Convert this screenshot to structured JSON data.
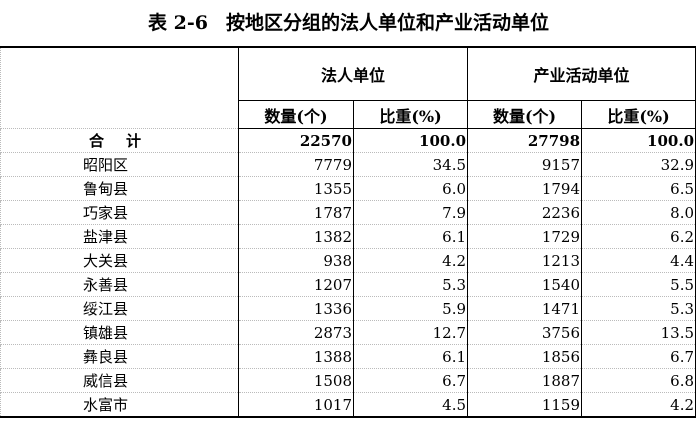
{
  "title": {
    "number": "表 2-6",
    "text": "按地区分组的法人单位和产业活动单位"
  },
  "headers": {
    "group1": "法人单位",
    "group2": "产业活动单位",
    "count": "数量(个)",
    "ratio": "比重(%)"
  },
  "total": {
    "label": "合计",
    "values": [
      "22570",
      "100.0",
      "27798",
      "100.0"
    ]
  },
  "rows": [
    {
      "name": "昭阳区",
      "values": [
        "7779",
        "34.5",
        "9157",
        "32.9"
      ]
    },
    {
      "name": "鲁甸县",
      "values": [
        "1355",
        "6.0",
        "1794",
        "6.5"
      ]
    },
    {
      "name": "巧家县",
      "values": [
        "1787",
        "7.9",
        "2236",
        "8.0"
      ]
    },
    {
      "name": "盐津县",
      "values": [
        "1382",
        "6.1",
        "1729",
        "6.2"
      ]
    },
    {
      "name": "大关县",
      "values": [
        "938",
        "4.2",
        "1213",
        "4.4"
      ]
    },
    {
      "name": "永善县",
      "values": [
        "1207",
        "5.3",
        "1540",
        "5.5"
      ]
    },
    {
      "name": "绥江县",
      "values": [
        "1336",
        "5.9",
        "1471",
        "5.3"
      ]
    },
    {
      "name": "镇雄县",
      "values": [
        "2873",
        "12.7",
        "3756",
        "13.5"
      ]
    },
    {
      "name": "彝良县",
      "values": [
        "1388",
        "6.1",
        "1856",
        "6.7"
      ]
    },
    {
      "name": "威信县",
      "values": [
        "1508",
        "6.7",
        "1887",
        "6.8"
      ]
    },
    {
      "name": "水富市",
      "values": [
        "1017",
        "4.5",
        "1159",
        "4.2"
      ]
    }
  ]
}
